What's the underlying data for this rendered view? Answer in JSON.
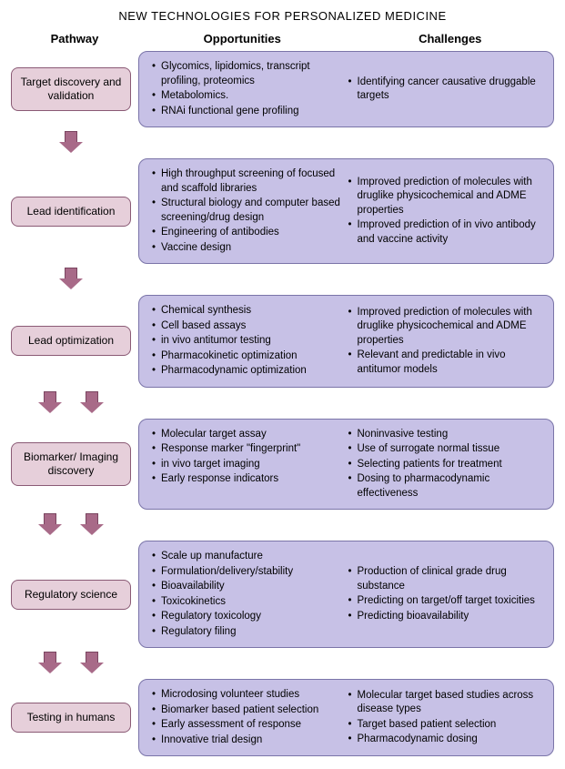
{
  "title": "NEW TECHNOLOGIES FOR PERSONALIZED MEDICINE",
  "headers": {
    "pathway": "Pathway",
    "opps": "Opportunities",
    "chal": "Challenges"
  },
  "colors": {
    "pathway_bg": "#e6cfda",
    "pathway_border": "#8a5a75",
    "content_bg": "#c7c1e6",
    "content_border": "#7a74a8",
    "arrow_fill": "#a86a88",
    "arrow_border": "#7a4560"
  },
  "rows": [
    {
      "label": "Target discovery and validation",
      "arrows_after": 1,
      "opps": [
        "Glycomics, lipidomics, transcript profiling, proteomics",
        "Metabolomics.",
        "RNAi functional gene profiling"
      ],
      "chal": [
        "Identifying cancer causative druggable targets"
      ]
    },
    {
      "label": "Lead identification",
      "arrows_after": 1,
      "opps": [
        "High throughput screening of focused and scaffold libraries",
        "Structural biology and computer based screening/drug design",
        "Engineering of antibodies",
        "Vaccine design"
      ],
      "chal": [
        "Improved prediction of molecules with druglike physicochemical and ADME properties",
        "Improved prediction of in vivo antibody and vaccine activity"
      ]
    },
    {
      "label": "Lead optimization",
      "arrows_after": 2,
      "opps": [
        "Chemical synthesis",
        "Cell based assays",
        "in vivo antitumor testing",
        "Pharmacokinetic optimization",
        "Pharmacodynamic optimization"
      ],
      "chal": [
        "Improved prediction of molecules with druglike physicochemical and ADME properties",
        "Relevant and predictable in vivo antitumor models"
      ]
    },
    {
      "label": "Biomarker/ Imaging discovery",
      "arrows_after": 2,
      "opps": [
        "Molecular target assay",
        "Response marker \"fingerprint\"",
        "in vivo target imaging",
        "Early response indicators"
      ],
      "chal": [
        "Noninvasive testing",
        "Use of surrogate normal tissue",
        "Selecting patients for treatment",
        "Dosing to pharmacodynamic effectiveness"
      ]
    },
    {
      "label": "Regulatory science",
      "arrows_after": 2,
      "opps": [
        "Scale up manufacture",
        "Formulation/delivery/stability",
        "Bioavailability",
        "Toxicokinetics",
        "Regulatory toxicology",
        "Regulatory filing"
      ],
      "chal": [
        "Production of clinical grade drug substance",
        "Predicting on target/off target toxicities",
        "Predicting bioavailability"
      ]
    },
    {
      "label": "Testing in humans",
      "arrows_after": 0,
      "opps": [
        "Microdosing volunteer studies",
        "Biomarker based patient selection",
        "Early assessment of response",
        "Innovative trial design"
      ],
      "chal": [
        "Molecular target based studies across disease types",
        "Target based patient selection",
        "Pharmacodynamic dosing"
      ]
    }
  ]
}
